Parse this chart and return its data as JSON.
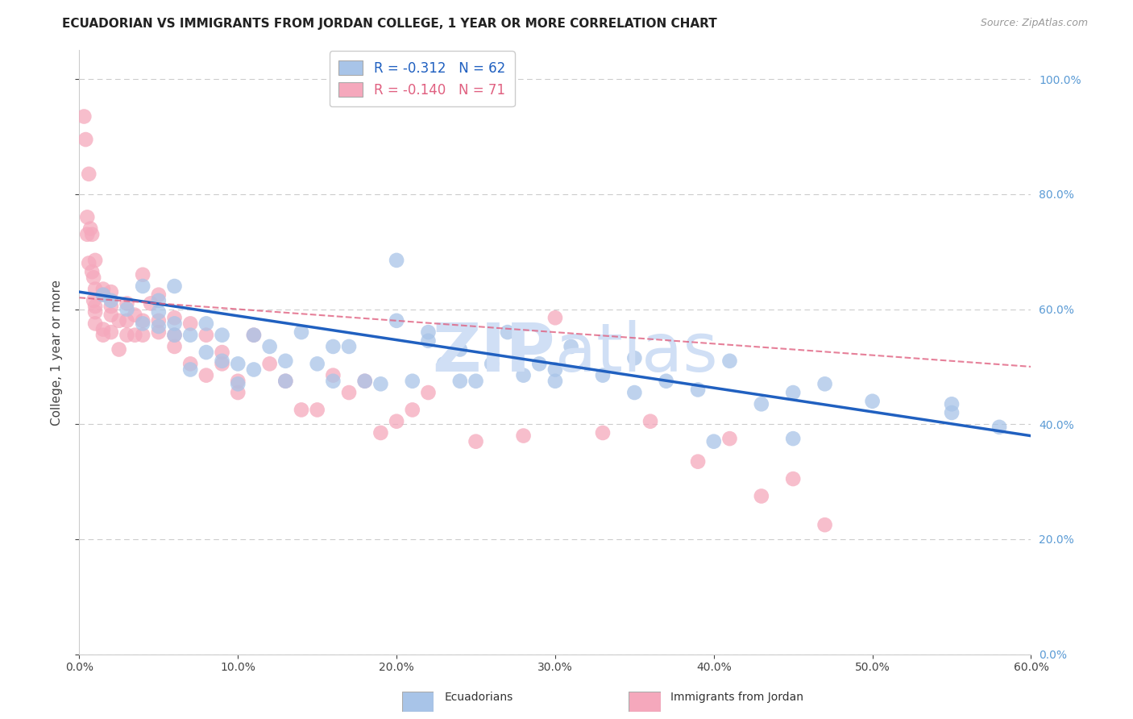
{
  "title": "ECUADORIAN VS IMMIGRANTS FROM JORDAN COLLEGE, 1 YEAR OR MORE CORRELATION CHART",
  "source": "Source: ZipAtlas.com",
  "ylabel_label": "College, 1 year or more",
  "legend_label1": "Ecuadorians",
  "legend_label2": "Immigrants from Jordan",
  "r1": -0.312,
  "n1": 62,
  "r2": -0.14,
  "n2": 71,
  "blue_color": "#a8c4e8",
  "pink_color": "#f5a8bc",
  "blue_line_color": "#2060c0",
  "pink_line_color": "#e06080",
  "watermark_color": "#d0dff5",
  "right_axis_color": "#5b9bd5",
  "xmin": 0.0,
  "xmax": 0.6,
  "ymin": 0.0,
  "ymax": 1.05,
  "blue_intercept": 0.63,
  "blue_slope": -0.417,
  "pink_intercept": 0.62,
  "pink_slope": -0.2,
  "blue_scatter_x": [
    0.015,
    0.02,
    0.03,
    0.04,
    0.04,
    0.05,
    0.05,
    0.05,
    0.06,
    0.06,
    0.06,
    0.07,
    0.07,
    0.08,
    0.08,
    0.09,
    0.09,
    0.1,
    0.1,
    0.11,
    0.11,
    0.12,
    0.13,
    0.13,
    0.14,
    0.15,
    0.16,
    0.16,
    0.17,
    0.18,
    0.19,
    0.2,
    0.21,
    0.22,
    0.23,
    0.24,
    0.25,
    0.26,
    0.27,
    0.28,
    0.29,
    0.3,
    0.31,
    0.33,
    0.35,
    0.37,
    0.39,
    0.41,
    0.43,
    0.45,
    0.47,
    0.5,
    0.55,
    0.58,
    0.2,
    0.22,
    0.24,
    0.3,
    0.35,
    0.4,
    0.45,
    0.55
  ],
  "blue_scatter_y": [
    0.625,
    0.615,
    0.6,
    0.575,
    0.64,
    0.57,
    0.595,
    0.615,
    0.555,
    0.575,
    0.64,
    0.555,
    0.495,
    0.525,
    0.575,
    0.51,
    0.555,
    0.505,
    0.47,
    0.555,
    0.495,
    0.535,
    0.51,
    0.475,
    0.56,
    0.505,
    0.475,
    0.535,
    0.535,
    0.475,
    0.47,
    0.58,
    0.475,
    0.56,
    0.505,
    0.53,
    0.475,
    0.505,
    0.56,
    0.485,
    0.505,
    0.475,
    0.535,
    0.485,
    0.455,
    0.475,
    0.46,
    0.51,
    0.435,
    0.455,
    0.47,
    0.44,
    0.42,
    0.395,
    0.685,
    0.545,
    0.475,
    0.495,
    0.515,
    0.37,
    0.375,
    0.435
  ],
  "pink_scatter_x": [
    0.003,
    0.004,
    0.005,
    0.006,
    0.007,
    0.008,
    0.009,
    0.01,
    0.01,
    0.01,
    0.01,
    0.015,
    0.015,
    0.015,
    0.02,
    0.02,
    0.02,
    0.02,
    0.025,
    0.025,
    0.03,
    0.03,
    0.03,
    0.035,
    0.035,
    0.04,
    0.04,
    0.04,
    0.045,
    0.05,
    0.05,
    0.05,
    0.06,
    0.06,
    0.06,
    0.07,
    0.07,
    0.08,
    0.08,
    0.09,
    0.09,
    0.1,
    0.1,
    0.11,
    0.12,
    0.13,
    0.14,
    0.15,
    0.16,
    0.17,
    0.18,
    0.19,
    0.2,
    0.21,
    0.22,
    0.25,
    0.28,
    0.3,
    0.33,
    0.36,
    0.39,
    0.41,
    0.43,
    0.45,
    0.47,
    0.005,
    0.006,
    0.008,
    0.009,
    0.01,
    0.015
  ],
  "pink_scatter_y": [
    0.935,
    0.895,
    0.76,
    0.835,
    0.74,
    0.73,
    0.655,
    0.685,
    0.635,
    0.605,
    0.575,
    0.565,
    0.635,
    0.625,
    0.63,
    0.59,
    0.605,
    0.56,
    0.58,
    0.53,
    0.58,
    0.555,
    0.61,
    0.59,
    0.555,
    0.58,
    0.555,
    0.66,
    0.61,
    0.625,
    0.56,
    0.58,
    0.555,
    0.585,
    0.535,
    0.575,
    0.505,
    0.555,
    0.485,
    0.525,
    0.505,
    0.475,
    0.455,
    0.555,
    0.505,
    0.475,
    0.425,
    0.425,
    0.485,
    0.455,
    0.475,
    0.385,
    0.405,
    0.425,
    0.455,
    0.37,
    0.38,
    0.585,
    0.385,
    0.405,
    0.335,
    0.375,
    0.275,
    0.305,
    0.225,
    0.73,
    0.68,
    0.665,
    0.615,
    0.595,
    0.555
  ]
}
